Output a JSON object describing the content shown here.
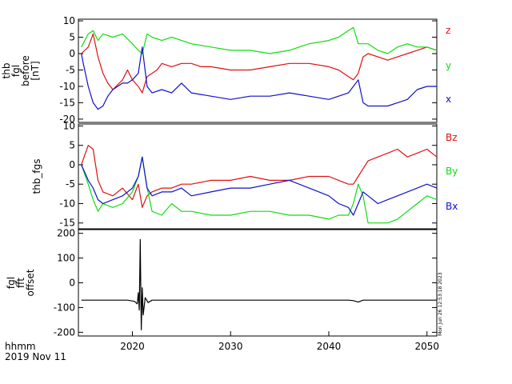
{
  "footer": {
    "time_label": "hhmm",
    "date_label": "2019 Nov 11"
  },
  "stamp": "Mon Jun 26 12:53:18 2023",
  "chart_data": [
    {
      "type": "line",
      "ylabel_lines": [
        "thb",
        "fgl",
        "before",
        "[nT]"
      ],
      "xlim": [
        2014.5,
        2051
      ],
      "ylim": [
        -21,
        10.5
      ],
      "yticks": [
        10,
        5,
        0,
        -5,
        -10,
        -15,
        -20
      ],
      "grid": false,
      "legend_position": "right",
      "series": [
        {
          "name": "z",
          "color": "#e01010",
          "x": [
            2014.8,
            2015.5,
            2016,
            2016.5,
            2017,
            2017.5,
            2018,
            2019,
            2019.5,
            2020,
            2020.6,
            2021,
            2021.5,
            2022,
            2022.5,
            2023,
            2024,
            2025,
            2026,
            2027,
            2028,
            2030,
            2032,
            2034,
            2036,
            2038,
            2040,
            2041,
            2042,
            2042.5,
            2043,
            2043.5,
            2044,
            2045,
            2046,
            2047,
            2048,
            2049,
            2050,
            2051
          ],
          "y": [
            0,
            2,
            6,
            -1,
            -6,
            -9,
            -11,
            -8,
            -5,
            -8,
            -10,
            -12,
            -7,
            -6,
            -5,
            -3,
            -4,
            -3,
            -3,
            -4,
            -4,
            -5,
            -5,
            -4,
            -3,
            -3,
            -4,
            -5,
            -7,
            -8,
            -6,
            -1,
            0,
            -1,
            -2,
            -1,
            0,
            1,
            2,
            1
          ]
        },
        {
          "name": "y",
          "color": "#10dd10",
          "x": [
            2014.8,
            2015.5,
            2016,
            2016.5,
            2017,
            2018,
            2019,
            2020,
            2020.6,
            2021,
            2021.5,
            2022,
            2023,
            2024,
            2025,
            2026,
            2028,
            2030,
            2032,
            2034,
            2036,
            2038,
            2040,
            2041,
            2042,
            2042.5,
            2043,
            2044,
            2045,
            2046,
            2047,
            2048,
            2049,
            2050,
            2051
          ],
          "y": [
            2,
            6,
            7,
            4,
            6,
            5,
            6,
            3,
            1,
            0,
            6,
            5,
            4,
            5,
            4,
            3,
            2,
            1,
            1,
            0,
            1,
            3,
            4,
            5,
            7,
            8,
            3,
            3,
            1,
            0,
            2,
            3,
            2,
            2,
            1
          ]
        },
        {
          "name": "x",
          "color": "#1010cc",
          "x": [
            2014.8,
            2015,
            2015.5,
            2016,
            2016.5,
            2017,
            2017.5,
            2018,
            2019,
            2019.5,
            2020,
            2020.6,
            2021,
            2021.5,
            2022,
            2023,
            2024,
            2025,
            2026,
            2028,
            2030,
            2032,
            2034,
            2036,
            2038,
            2040,
            2041,
            2042,
            2042.5,
            2043,
            2043.5,
            2044,
            2045,
            2046,
            2047,
            2048,
            2049,
            2050,
            2051
          ],
          "y": [
            0,
            -3,
            -10,
            -15,
            -17,
            -16,
            -13,
            -11,
            -9,
            -9,
            -8,
            -6,
            2,
            -10,
            -12,
            -11,
            -12,
            -9,
            -12,
            -13,
            -14,
            -13,
            -13,
            -12,
            -13,
            -14,
            -13,
            -12,
            -10,
            -8,
            -15,
            -16,
            -16,
            -16,
            -15,
            -14,
            -11,
            -10,
            -10
          ]
        }
      ]
    },
    {
      "type": "line",
      "ylabel_lines": [
        "thb_fgs"
      ],
      "xlim": [
        2014.5,
        2051
      ],
      "ylim": [
        -16.5,
        10.5
      ],
      "yticks": [
        10,
        5,
        0,
        -5,
        -10,
        -15
      ],
      "grid": false,
      "legend_position": "right",
      "series": [
        {
          "name": "Bz",
          "color": "#e01010",
          "x": [
            2014.8,
            2015.5,
            2016,
            2016.5,
            2017,
            2018,
            2019,
            2020,
            2020.6,
            2021,
            2021.5,
            2022,
            2023,
            2024,
            2025,
            2026,
            2028,
            2030,
            2032,
            2034,
            2036,
            2038,
            2040,
            2041,
            2042,
            2042.5,
            2043,
            2043.5,
            2044,
            2045,
            2046,
            2047,
            2048,
            2049,
            2050,
            2051
          ],
          "y": [
            0,
            5,
            4,
            -4,
            -7,
            -8,
            -6,
            -9,
            -5,
            -11,
            -8,
            -7,
            -6,
            -6,
            -5,
            -5,
            -4,
            -4,
            -3,
            -4,
            -4,
            -3,
            -3,
            -4,
            -5,
            -5,
            -3,
            -1,
            1,
            2,
            3,
            4,
            2,
            3,
            4,
            2
          ]
        },
        {
          "name": "By",
          "color": "#10dd10",
          "x": [
            2014.8,
            2015.5,
            2016,
            2016.5,
            2017,
            2018,
            2019,
            2020,
            2020.6,
            2021,
            2021.5,
            2022,
            2023,
            2024,
            2025,
            2026,
            2028,
            2030,
            2032,
            2034,
            2036,
            2038,
            2040,
            2041,
            2042,
            2042.5,
            2043,
            2043.5,
            2044,
            2045,
            2046,
            2047,
            2048,
            2049,
            2050,
            2051
          ],
          "y": [
            0,
            -5,
            -9,
            -12,
            -10,
            -11,
            -10,
            -7,
            -3,
            2,
            -6,
            -12,
            -13,
            -10,
            -12,
            -12,
            -13,
            -13,
            -12,
            -12,
            -13,
            -13,
            -14,
            -13,
            -13,
            -10,
            -5,
            -8,
            -15,
            -15,
            -15,
            -14,
            -12,
            -10,
            -8,
            -9
          ]
        },
        {
          "name": "Bx",
          "color": "#1010cc",
          "x": [
            2014.8,
            2015.5,
            2016,
            2016.5,
            2017,
            2018,
            2019,
            2020,
            2020.6,
            2021,
            2021.5,
            2022,
            2023,
            2024,
            2025,
            2026,
            2028,
            2030,
            2032,
            2034,
            2036,
            2038,
            2040,
            2041,
            2042,
            2042.5,
            2043,
            2043.5,
            2044,
            2045,
            2046,
            2047,
            2048,
            2049,
            2050,
            2051
          ],
          "y": [
            0,
            -4,
            -6,
            -9,
            -10,
            -9,
            -8,
            -6,
            -3,
            2,
            -6,
            -8,
            -7,
            -7,
            -6,
            -8,
            -7,
            -6,
            -6,
            -5,
            -4,
            -6,
            -8,
            -10,
            -11,
            -13,
            -10,
            -7,
            -8,
            -10,
            -9,
            -8,
            -7,
            -6,
            -5,
            -6
          ]
        }
      ]
    },
    {
      "type": "line",
      "ylabel_lines": [
        "fgl",
        "fft",
        "offset"
      ],
      "xlim": [
        2014.5,
        2051
      ],
      "ylim": [
        -215,
        215
      ],
      "yticks": [
        200,
        100,
        0,
        -100,
        -200
      ],
      "xticks": [
        2020,
        2030,
        2040,
        2050
      ],
      "grid": false,
      "series": [
        {
          "color": "#000000",
          "x": [
            2014.8,
            2016,
            2018,
            2019.5,
            2020.2,
            2020.5,
            2020.6,
            2020.7,
            2020.8,
            2020.9,
            2021,
            2021.1,
            2021.3,
            2021.6,
            2022,
            2025,
            2030,
            2035,
            2040,
            2042,
            2042.5,
            2043,
            2043.5,
            2045,
            2048,
            2051
          ],
          "y": [
            -70,
            -70,
            -70,
            -70,
            -75,
            -85,
            -40,
            -110,
            175,
            -190,
            -20,
            -130,
            -60,
            -80,
            -70,
            -70,
            -70,
            -70,
            -70,
            -70,
            -72,
            -78,
            -70,
            -70,
            -70,
            -70
          ]
        }
      ]
    }
  ]
}
